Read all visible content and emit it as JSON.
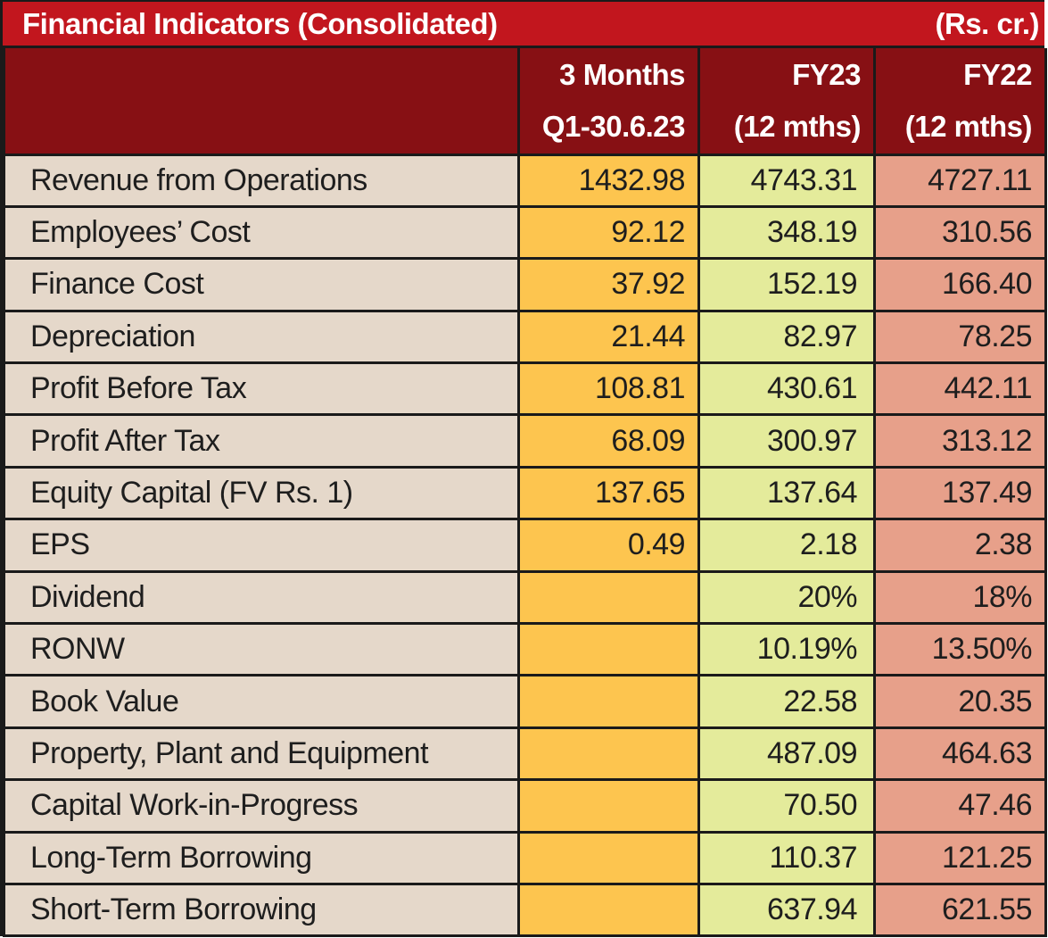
{
  "title": "Financial Indicators (Consolidated)",
  "unit": "(Rs. cr.)",
  "columns": [
    {
      "line1": "3 Months",
      "line2": "Q1-30.6.23"
    },
    {
      "line1": "FY23",
      "line2": "(12 mths)"
    },
    {
      "line1": "FY22",
      "line2": "(12 mths)"
    }
  ],
  "rows": [
    {
      "label": "Revenue from Operations",
      "q1": "1432.98",
      "fy23": "4743.31",
      "fy22": "4727.11"
    },
    {
      "label": "Employees’ Cost",
      "q1": "92.12",
      "fy23": "348.19",
      "fy22": "310.56"
    },
    {
      "label": "Finance Cost",
      "q1": "37.92",
      "fy23": "152.19",
      "fy22": "166.40"
    },
    {
      "label": "Depreciation",
      "q1": "21.44",
      "fy23": "82.97",
      "fy22": "78.25"
    },
    {
      "label": "Profit Before Tax",
      "q1": "108.81",
      "fy23": "430.61",
      "fy22": "442.11"
    },
    {
      "label": "Profit After Tax",
      "q1": "68.09",
      "fy23": "300.97",
      "fy22": "313.12"
    },
    {
      "label": "Equity Capital (FV Rs. 1)",
      "q1": "137.65",
      "fy23": "137.64",
      "fy22": "137.49"
    },
    {
      "label": "EPS",
      "q1": "0.49",
      "fy23": "2.18",
      "fy22": "2.38"
    },
    {
      "label": "Dividend",
      "q1": "",
      "fy23": "20%",
      "fy22": "18%"
    },
    {
      "label": "RONW",
      "q1": "",
      "fy23": "10.19%",
      "fy22": "13.50%"
    },
    {
      "label": "Book Value",
      "q1": "",
      "fy23": "22.58",
      "fy22": "20.35"
    },
    {
      "label": "Property, Plant and Equipment",
      "q1": "",
      "fy23": "487.09",
      "fy22": "464.63"
    },
    {
      "label": "Capital Work-in-Progress",
      "q1": "",
      "fy23": "70.50",
      "fy22": "47.46"
    },
    {
      "label": "Long-Term Borrowing",
      "q1": "",
      "fy23": "110.37",
      "fy22": "121.25"
    },
    {
      "label": "Short-Term Borrowing",
      "q1": "",
      "fy23": "637.94",
      "fy22": "621.55"
    }
  ],
  "colors": {
    "title_bg": "#c2161e",
    "header_bg": "#871014",
    "label_bg": "#e5d8ca",
    "q1_bg": "#fdc54f",
    "fy23_bg": "#e4eb9b",
    "fy22_bg": "#e7a08a"
  }
}
